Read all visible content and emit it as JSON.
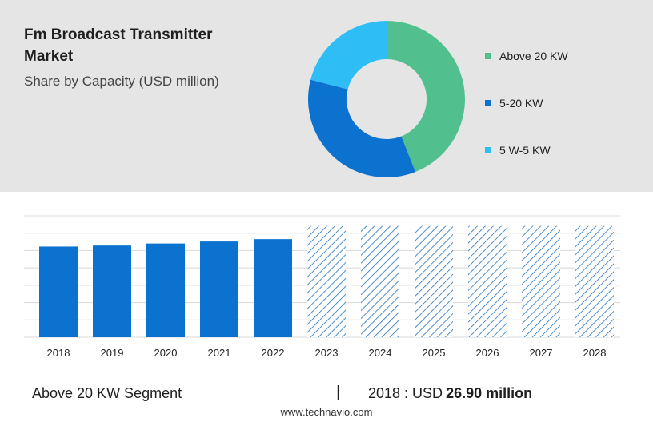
{
  "header": {
    "title": "Fm Broadcast Transmitter Market",
    "subtitle": "Share by Capacity (USD million)"
  },
  "chart_data": [
    {
      "type": "pie",
      "subtype": "donut",
      "title": "Fm Broadcast Transmitter Market",
      "subtitle": "Share by Capacity (USD million)",
      "legend_position": "right",
      "series": [
        {
          "name": "Above 20 KW",
          "value": 44,
          "color": "#52c08e"
        },
        {
          "name": "5-20 KW",
          "value": 35,
          "color": "#0b72cf"
        },
        {
          "name": "5 W-5 KW",
          "value": 21,
          "color": "#2ebef5"
        }
      ]
    },
    {
      "type": "bar",
      "categories": [
        "2018",
        "2019",
        "2020",
        "2021",
        "2022",
        "2023",
        "2024",
        "2025",
        "2026",
        "2027",
        "2028"
      ],
      "series": [
        {
          "values": [
            26.9,
            27.2,
            27.8,
            28.4,
            29.1,
            33.0,
            33.0,
            33.0,
            33.0,
            33.0,
            33.0
          ]
        }
      ],
      "forecast_from": "2023",
      "forecast_style": "hatched",
      "ylim": [
        0,
        36
      ],
      "grid": true,
      "bar_color": "#0b72cf"
    }
  ],
  "footer": {
    "segment": "Above 20 KW Segment",
    "separator": "|",
    "year_prefix": "2018 : USD",
    "value": "26.90 million"
  },
  "watermark": "www.technavio.com"
}
